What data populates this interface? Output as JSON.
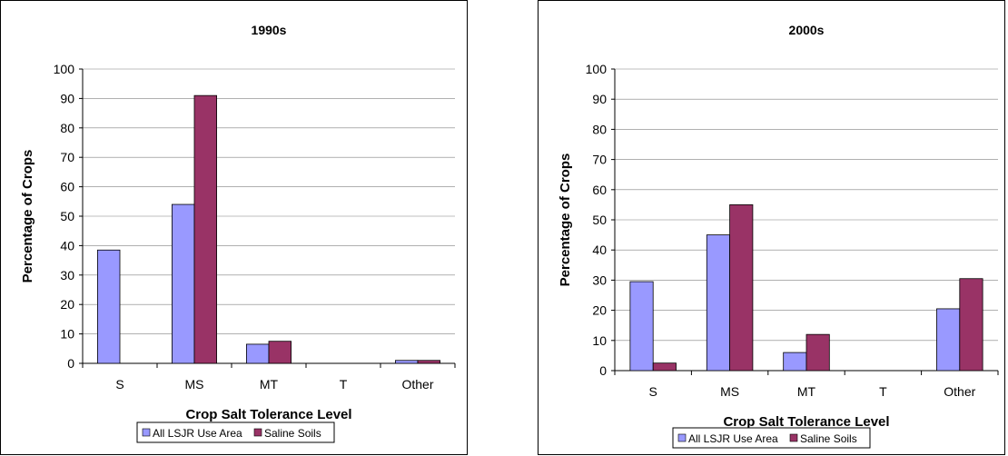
{
  "chart_data": [
    {
      "type": "bar",
      "title": "1990s",
      "xlabel": "Crop Salt Tolerance Level",
      "ylabel": "Percentage of Crops",
      "ylim": [
        0,
        100
      ],
      "yticks": [
        0,
        10,
        20,
        30,
        40,
        50,
        60,
        70,
        80,
        90,
        100
      ],
      "grid": true,
      "legend": "bottom",
      "categories": [
        "S",
        "MS",
        "MT",
        "T",
        "Other"
      ],
      "series": [
        {
          "name": "All LSJR Use Area",
          "color": "#9999ff",
          "values": [
            38.5,
            54,
            6.5,
            0,
            1
          ]
        },
        {
          "name": "Saline Soils",
          "color": "#993366",
          "values": [
            0,
            91,
            7.5,
            0,
            1
          ]
        }
      ]
    },
    {
      "type": "bar",
      "title": "2000s",
      "xlabel": "Crop Salt Tolerance Level",
      "ylabel": "Percentage of Crops",
      "ylim": [
        0,
        100
      ],
      "yticks": [
        0,
        10,
        20,
        30,
        40,
        50,
        60,
        70,
        80,
        90,
        100
      ],
      "grid": true,
      "legend": "bottom",
      "categories": [
        "S",
        "MS",
        "MT",
        "T",
        "Other"
      ],
      "series": [
        {
          "name": "All LSJR Use Area",
          "color": "#9999ff",
          "values": [
            29.5,
            45,
            6,
            0,
            20.5
          ]
        },
        {
          "name": "Saline Soils",
          "color": "#993366",
          "values": [
            2.5,
            55,
            12,
            0,
            30.5
          ]
        }
      ]
    }
  ]
}
